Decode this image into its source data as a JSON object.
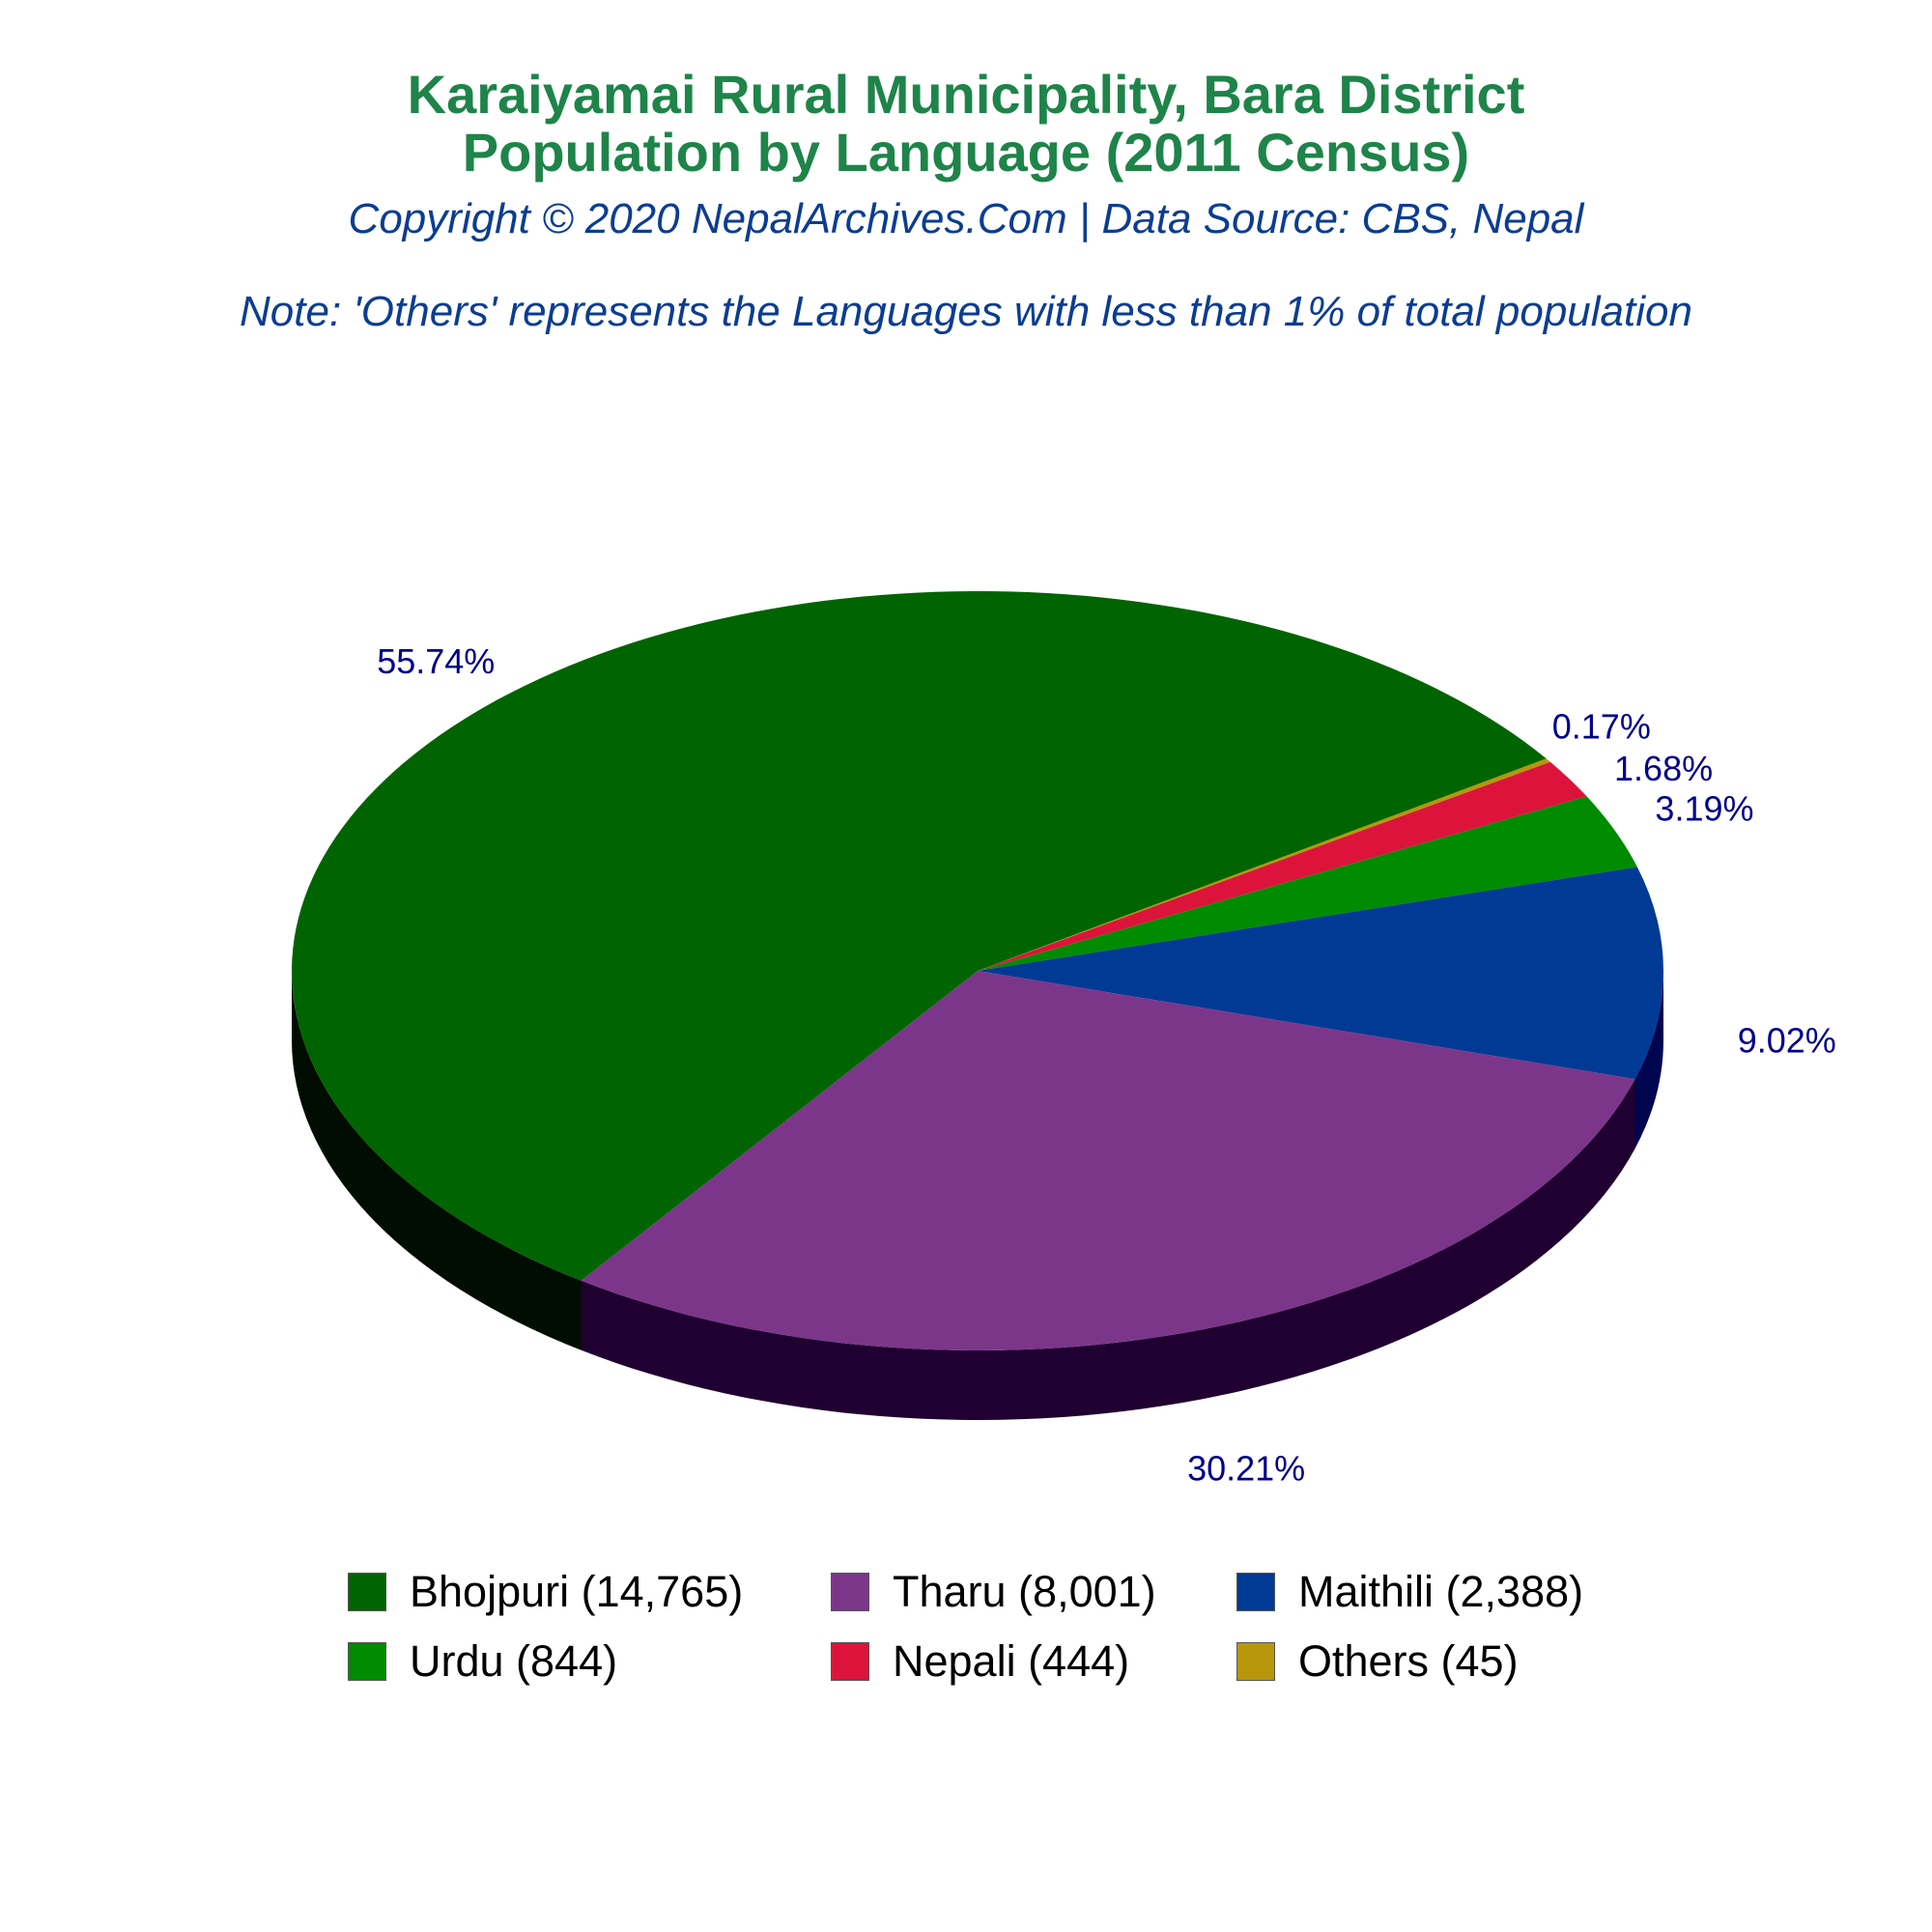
{
  "header": {
    "title_line_1": "Karaiyamai Rural Municipality, Bara District",
    "title_line_2": "Population by Language (2011 Census)",
    "copyright": "Copyright © 2020 NepalArchives.Com | Data Source: CBS, Nepal",
    "note": "Note: 'Others' represents the Languages with less than 1% of total population"
  },
  "chart_data": {
    "type": "pie",
    "title": "Karaiyamai Rural Municipality, Bara District Population by Language (2011 Census)",
    "categories": [
      "Bhojpuri",
      "Tharu",
      "Maithili",
      "Urdu",
      "Nepali",
      "Others"
    ],
    "values": [
      14765,
      8001,
      2388,
      844,
      444,
      45
    ],
    "percent_labels": [
      "55.74%",
      "30.21%",
      "9.02%",
      "3.19%",
      "1.68%",
      "0.17%"
    ],
    "legend_labels": [
      "Bhojpuri (14,765)",
      "Tharu (8,001)",
      "Maithili (2,388)",
      "Urdu (844)",
      "Nepali (444)",
      "Others (45)"
    ],
    "colors": [
      "#006400",
      "#7b368a",
      "#003a94",
      "#008b00",
      "#dc143c",
      "#b8960c"
    ],
    "side_colors": [
      "#000d00",
      "#1f0030",
      "#000550",
      "#001800",
      "#400010",
      "#302000"
    ],
    "label_color": "#00008b",
    "legend_position": "bottom"
  }
}
